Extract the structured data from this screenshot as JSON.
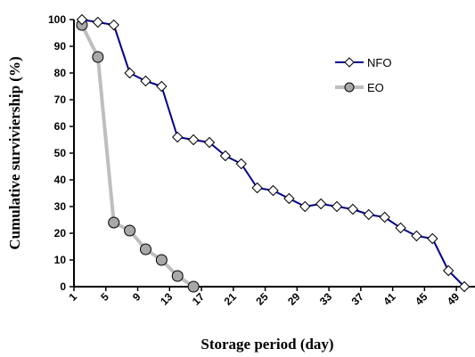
{
  "chart_data": {
    "type": "line",
    "title": "",
    "xlabel": "Storage period (day)",
    "ylabel": "Cumulative surviviership (%)",
    "xlim": [
      1,
      51
    ],
    "ylim": [
      0,
      100
    ],
    "xticks": [
      1,
      5,
      9,
      13,
      17,
      21,
      25,
      29,
      33,
      37,
      41,
      45,
      49
    ],
    "yticks": [
      0,
      10,
      20,
      30,
      40,
      50,
      60,
      70,
      80,
      90,
      100
    ],
    "grid": false,
    "legend": "top-right",
    "series": [
      {
        "name": "NFO",
        "color": "#00008B",
        "marker": "diamond",
        "x": [
          2,
          4,
          6,
          8,
          10,
          12,
          14,
          16,
          18,
          20,
          22,
          24,
          26,
          28,
          30,
          32,
          34,
          36,
          38,
          40,
          42,
          44,
          46,
          48,
          50
        ],
        "y": [
          100,
          99,
          98,
          80,
          77,
          75,
          56,
          55,
          54,
          49,
          46,
          37,
          36,
          33,
          30,
          31,
          30,
          29,
          27,
          26,
          22,
          19,
          18,
          6,
          0
        ]
      },
      {
        "name": "EO",
        "color": "#BEBEBE",
        "marker": "circle",
        "x": [
          2,
          4,
          6,
          8,
          10,
          12,
          14,
          16
        ],
        "y": [
          98,
          86,
          24,
          21,
          14,
          10,
          4,
          0
        ]
      }
    ]
  }
}
